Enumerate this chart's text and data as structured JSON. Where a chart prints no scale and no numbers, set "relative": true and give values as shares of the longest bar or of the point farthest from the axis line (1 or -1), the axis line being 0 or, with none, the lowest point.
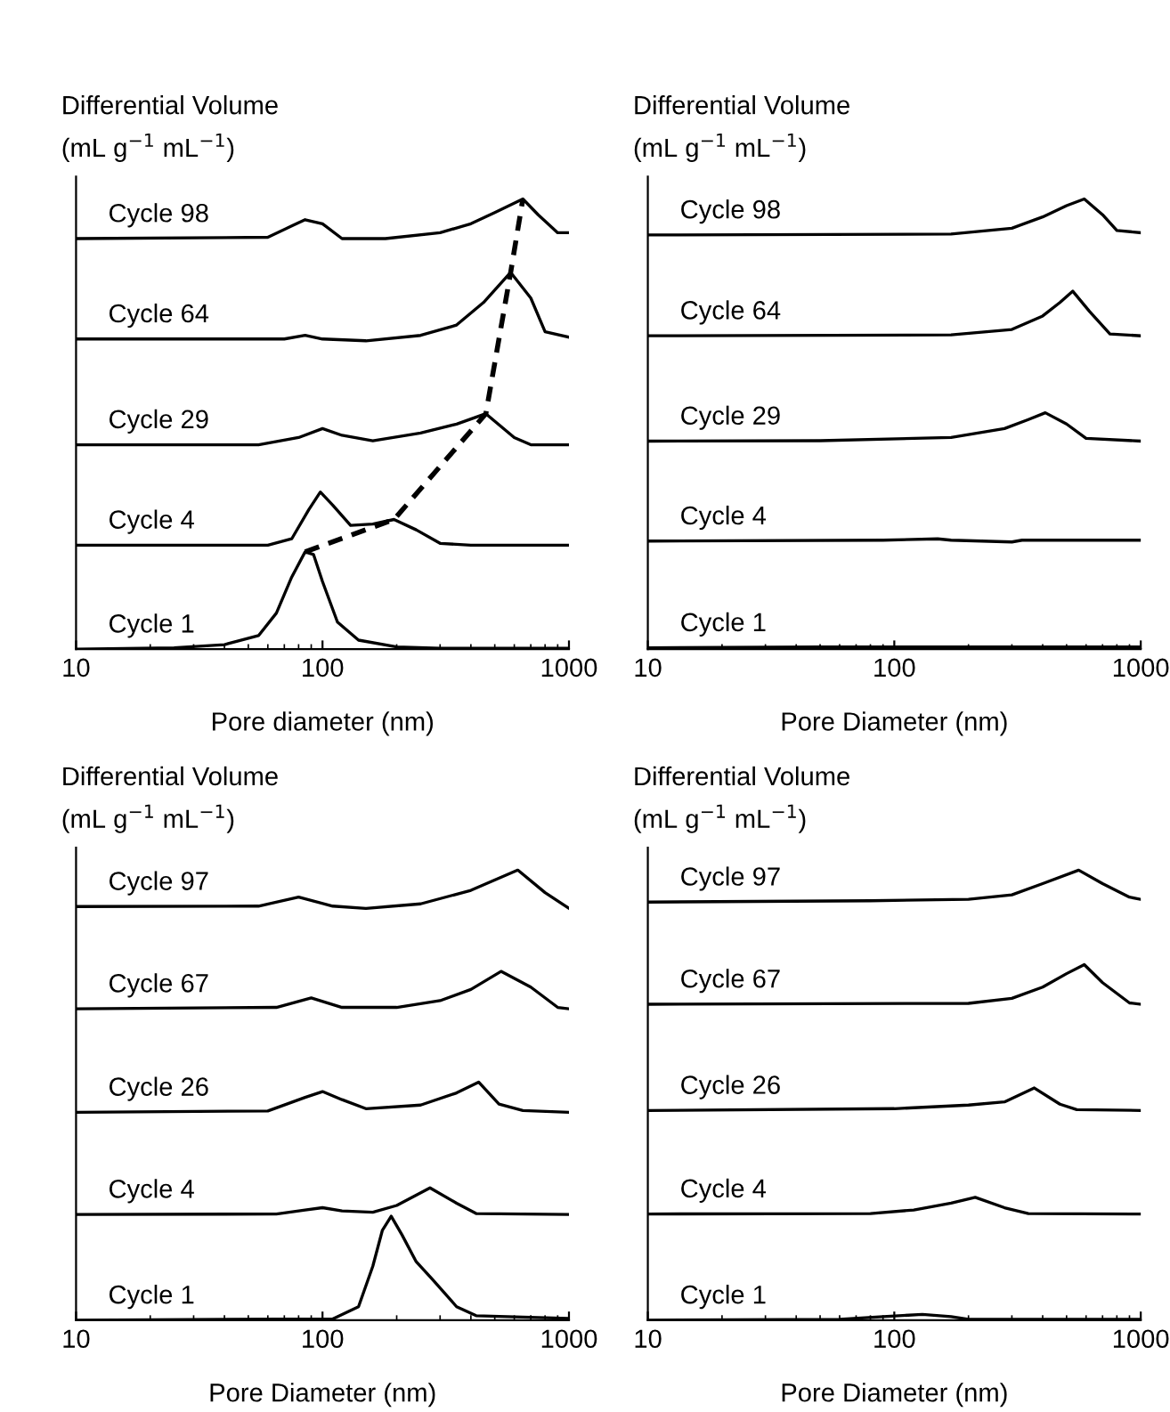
{
  "chart_data": [
    {
      "type": "line",
      "xlabel": "Pore diameter (nm)",
      "ylabel": "Differential Volume\n(mL g$^{−1}$ mL$^{−1}$)",
      "log": "x",
      "xlim": [
        10,
        1000
      ],
      "xticks": [
        10,
        100,
        1000
      ],
      "relative": true,
      "tick_labels": "x",
      "series": [
        {
          "name": "Cycle 98",
          "color": "#000000",
          "x": [
            10,
            60,
            75,
            85,
            100,
            120,
            180,
            300,
            400,
            500,
            650,
            750,
            900,
            1000
          ],
          "values": [
            0.912,
            0.915,
            0.94,
            0.954,
            0.945,
            0.912,
            0.912,
            0.925,
            0.945,
            0.97,
            1.0,
            0.965,
            0.925,
            0.925
          ]
        },
        {
          "name": "Cycle 64",
          "color": "#000000",
          "x": [
            10,
            70,
            85,
            100,
            150,
            250,
            350,
            450,
            580,
            700,
            800,
            1000
          ],
          "values": [
            0.689,
            0.689,
            0.697,
            0.689,
            0.685,
            0.697,
            0.72,
            0.77,
            0.837,
            0.78,
            0.705,
            0.693
          ]
        },
        {
          "name": "Cycle 29",
          "color": "#000000",
          "x": [
            10,
            55,
            80,
            100,
            120,
            160,
            250,
            350,
            460,
            600,
            700,
            1000
          ],
          "values": [
            0.454,
            0.454,
            0.47,
            0.49,
            0.475,
            0.463,
            0.48,
            0.5,
            0.523,
            0.47,
            0.454,
            0.454
          ]
        },
        {
          "name": "Cycle 4",
          "color": "#000000",
          "x": [
            10,
            60,
            75,
            88,
            98,
            110,
            130,
            160,
            195,
            240,
            300,
            400,
            1000
          ],
          "values": [
            0.231,
            0.231,
            0.245,
            0.31,
            0.349,
            0.32,
            0.275,
            0.278,
            0.288,
            0.265,
            0.235,
            0.231,
            0.231
          ]
        },
        {
          "name": "Cycle 1",
          "color": "#000000",
          "x": [
            10,
            25,
            40,
            55,
            65,
            75,
            85,
            92,
            100,
            115,
            140,
            200,
            300,
            1000
          ],
          "values": [
            0,
            0.003,
            0.01,
            0.03,
            0.08,
            0.16,
            0.216,
            0.21,
            0.15,
            0.06,
            0.02,
            0.005,
            0.002,
            0.002
          ]
        },
        {
          "type": "line",
          "line_style": "dashed",
          "color": "#000000",
          "x": [
            85,
            195,
            460,
            580,
            650
          ],
          "values": [
            0.216,
            0.288,
            0.523,
            0.837,
            1.0
          ]
        }
      ]
    },
    {
      "type": "line",
      "xlabel": "Pore Diameter (nm)",
      "ylabel": "Differential Volume\n(mL g$^{−1}$ mL$^{−1}$)",
      "log": "x",
      "xlim": [
        10,
        1000
      ],
      "xticks": [
        10,
        100,
        1000
      ],
      "relative": true,
      "tick_labels": "x",
      "series": [
        {
          "name": "Cycle 98",
          "color": "#000000",
          "x": [
            10,
            170,
            300,
            400,
            500,
            590,
            700,
            800,
            1000
          ],
          "values": [
            0.92,
            0.922,
            0.935,
            0.96,
            0.985,
            1.0,
            0.965,
            0.93,
            0.925
          ]
        },
        {
          "name": "Cycle 64",
          "color": "#000000",
          "x": [
            10,
            170,
            300,
            400,
            470,
            530,
            620,
            750,
            1000
          ],
          "values": [
            0.696,
            0.698,
            0.71,
            0.74,
            0.77,
            0.795,
            0.75,
            0.7,
            0.696
          ]
        },
        {
          "name": "Cycle 29",
          "color": "#000000",
          "x": [
            10,
            50,
            170,
            280,
            350,
            410,
            500,
            600,
            1000
          ],
          "values": [
            0.462,
            0.463,
            0.47,
            0.49,
            0.51,
            0.525,
            0.5,
            0.468,
            0.462
          ]
        },
        {
          "name": "Cycle 4",
          "color": "#000000",
          "x": [
            10,
            90,
            150,
            170,
            300,
            330,
            1000
          ],
          "values": [
            0.24,
            0.242,
            0.245,
            0.242,
            0.238,
            0.242,
            0.242
          ]
        },
        {
          "name": "Cycle 1",
          "color": "#000000",
          "x": [
            10,
            50,
            1000
          ],
          "values": [
            0.003,
            0.005,
            0.005
          ]
        }
      ]
    },
    {
      "type": "line",
      "xlabel": "Pore Diameter (nm)",
      "ylabel": "Differential Volume\n(mL g$^{−1}$ mL$^{−1}$)",
      "log": "x",
      "xlim": [
        10,
        1000
      ],
      "xticks": [
        10,
        100,
        1000
      ],
      "relative": true,
      "tick_labels": "x",
      "series": [
        {
          "name": "Cycle 97",
          "color": "#000000",
          "x": [
            10,
            55,
            80,
            110,
            150,
            250,
            400,
            620,
            800,
            1000
          ],
          "values": [
            0.919,
            0.92,
            0.94,
            0.92,
            0.915,
            0.925,
            0.955,
            1.0,
            0.95,
            0.915
          ]
        },
        {
          "name": "Cycle 67",
          "color": "#000000",
          "x": [
            10,
            65,
            90,
            120,
            200,
            300,
            400,
            530,
            700,
            900,
            1000
          ],
          "values": [
            0.692,
            0.695,
            0.716,
            0.695,
            0.695,
            0.71,
            0.735,
            0.775,
            0.74,
            0.695,
            0.692
          ]
        },
        {
          "name": "Cycle 26",
          "color": "#000000",
          "x": [
            10,
            60,
            85,
            100,
            120,
            150,
            250,
            350,
            430,
            520,
            650,
            1000
          ],
          "values": [
            0.462,
            0.465,
            0.495,
            0.508,
            0.49,
            0.47,
            0.478,
            0.505,
            0.529,
            0.48,
            0.466,
            0.462
          ]
        },
        {
          "name": "Cycle 4",
          "color": "#000000",
          "x": [
            10,
            65,
            85,
            100,
            120,
            160,
            200,
            273,
            350,
            420,
            1000
          ],
          "values": [
            0.235,
            0.236,
            0.245,
            0.25,
            0.243,
            0.24,
            0.255,
            0.294,
            0.26,
            0.237,
            0.235
          ]
        },
        {
          "name": "Cycle 1",
          "color": "#000000",
          "x": [
            10,
            110,
            140,
            160,
            175,
            190,
            210,
            240,
            280,
            350,
            420,
            1000
          ],
          "values": [
            0,
            0.003,
            0.03,
            0.12,
            0.2,
            0.231,
            0.19,
            0.13,
            0.09,
            0.03,
            0.01,
            0.004
          ]
        }
      ]
    },
    {
      "type": "line",
      "xlabel": "Pore Diameter (nm)",
      "ylabel": "Differential Volume\n(mL g$^{−1}$ mL$^{−1}$)",
      "log": "x",
      "xlim": [
        10,
        1000
      ],
      "xticks": [
        10,
        100,
        1000
      ],
      "relative": true,
      "tick_labels": "x",
      "series": [
        {
          "name": "Cycle 97",
          "color": "#000000",
          "x": [
            10,
            80,
            200,
            300,
            400,
            560,
            700,
            900,
            1000
          ],
          "values": [
            0.929,
            0.932,
            0.935,
            0.945,
            0.97,
            1.0,
            0.97,
            0.94,
            0.935
          ]
        },
        {
          "name": "Cycle 67",
          "color": "#000000",
          "x": [
            10,
            200,
            300,
            400,
            500,
            590,
            700,
            900,
            1000
          ],
          "values": [
            0.702,
            0.704,
            0.715,
            0.74,
            0.77,
            0.79,
            0.75,
            0.705,
            0.702
          ]
        },
        {
          "name": "Cycle 26",
          "color": "#000000",
          "x": [
            10,
            100,
            200,
            280,
            370,
            470,
            550,
            1000
          ],
          "values": [
            0.466,
            0.47,
            0.478,
            0.485,
            0.516,
            0.48,
            0.468,
            0.466
          ]
        },
        {
          "name": "Cycle 4",
          "color": "#000000",
          "x": [
            10,
            80,
            120,
            170,
            213,
            280,
            350,
            1000
          ],
          "values": [
            0.236,
            0.237,
            0.245,
            0.26,
            0.273,
            0.25,
            0.237,
            0.236
          ]
        },
        {
          "name": "Cycle 1",
          "color": "#000000",
          "x": [
            10,
            60,
            90,
            130,
            170,
            200,
            1000
          ],
          "values": [
            0,
            0.002,
            0.008,
            0.013,
            0.008,
            0.002,
            0.002
          ]
        }
      ]
    }
  ]
}
